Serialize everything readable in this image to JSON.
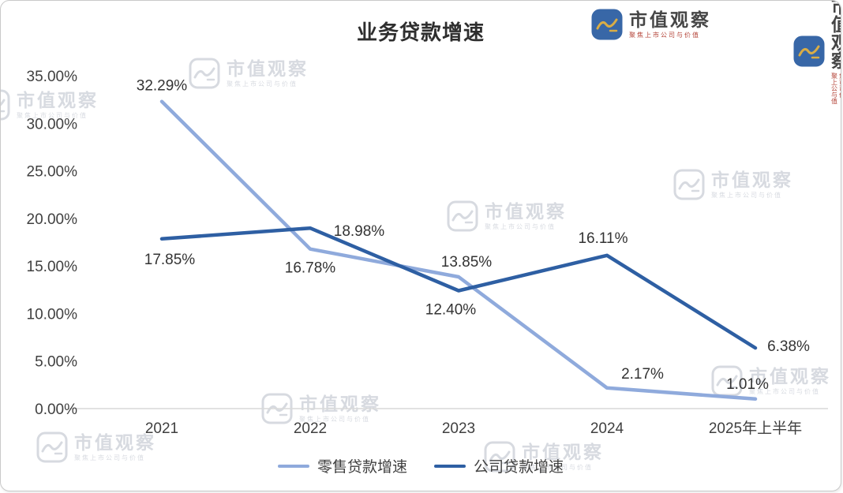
{
  "chart_data": {
    "type": "line",
    "title": "业务贷款增速",
    "categories": [
      "2021",
      "2022",
      "2023",
      "2024",
      "2025年上半年"
    ],
    "series": [
      {
        "name": "零售贷款增速",
        "color": "#8FAADC",
        "values": [
          32.29,
          16.78,
          13.85,
          2.17,
          1.01
        ],
        "labels": [
          "32.29%",
          "16.78%",
          "13.85%",
          "2.17%",
          "1.01%"
        ]
      },
      {
        "name": "公司贷款增速",
        "color": "#2E5FA3",
        "values": [
          17.85,
          18.98,
          12.4,
          16.11,
          6.38
        ],
        "labels": [
          "17.85%",
          "18.98%",
          "12.40%",
          "16.11%",
          "6.38%"
        ]
      }
    ],
    "ylim": [
      0,
      35
    ],
    "ytick_step": 5,
    "ytick_labels": [
      "0.00%",
      "5.00%",
      "10.00%",
      "15.00%",
      "20.00%",
      "25.00%",
      "30.00%",
      "35.00%"
    ],
    "xlabel": "",
    "ylabel": "",
    "grid": false,
    "legend_position": "bottom"
  },
  "colors": {
    "axis_text": "#404040",
    "data_label_text": "#333333",
    "baseline": "#d9d9d9",
    "watermark_gray": "#b7bdc8",
    "watermark_blue": "#2E5FA3",
    "watermark_gold": "#d8a93c"
  },
  "watermark": {
    "brand": "市值观察",
    "tagline": "聚焦上市公司与价值"
  }
}
